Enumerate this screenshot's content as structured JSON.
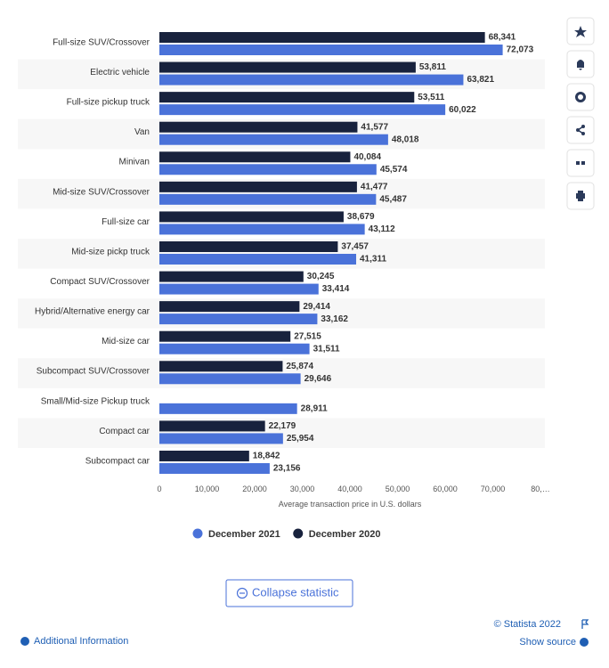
{
  "chart_data": {
    "type": "bar",
    "orientation": "horizontal",
    "categories": [
      "Full-size SUV/Crossover",
      "Electric vehicle",
      "Full-size pickup truck",
      "Van",
      "Minivan",
      "Mid-size SUV/Crossover",
      "Full-size car",
      "Mid-size pickp truck",
      "Compact SUV/Crossover",
      "Hybrid/Alternative energy car",
      "Mid-size car",
      "Subcompact SUV/Crossover",
      "Small/Mid-size Pickup truck",
      "Compact car",
      "Subcompact car"
    ],
    "series": [
      {
        "name": "December 2021",
        "color": "#4a72d9",
        "values": [
          72073,
          63821,
          60022,
          48018,
          45574,
          45487,
          43112,
          41311,
          33414,
          33162,
          31511,
          29646,
          28911,
          25954,
          23156
        ],
        "value_labels": [
          "72,073",
          "63,821",
          "60,022",
          "48,018",
          "45,574",
          "45,487",
          "43,112",
          "41,311",
          "33,414",
          "33,162",
          "31,511",
          "29,646",
          "28,911",
          "25,954",
          "23,156"
        ]
      },
      {
        "name": "December 2020",
        "color": "#18223d",
        "values": [
          68341,
          53811,
          53511,
          41577,
          40084,
          41477,
          38679,
          37457,
          30245,
          29414,
          27515,
          25874,
          null,
          22179,
          18842
        ],
        "value_labels": [
          "68,341",
          "53,811",
          "53,511",
          "41,577",
          "40,084",
          "41,477",
          "38,679",
          "37,457",
          "30,245",
          "29,414",
          "27,515",
          "25,874",
          null,
          "22,179",
          "18,842"
        ]
      }
    ],
    "x_label": "Average transaction price in U.S. dollars",
    "xlim": [
      0,
      80000
    ],
    "xticks": [
      0,
      {
        "value": 10000,
        "label": "10,000"
      },
      {
        "value": 20000,
        "label": "20,000"
      },
      {
        "value": 30000,
        "label": "30,000"
      },
      {
        "value": 40000,
        "label": "40,000"
      },
      {
        "value": 50000,
        "label": "50,000"
      },
      {
        "value": 60000,
        "label": "60,000"
      },
      {
        "value": 70000,
        "label": "70,000"
      },
      {
        "value": 80000,
        "label": "80,…"
      }
    ],
    "grid": false
  },
  "ui": {
    "collapse_button": "Collapse statistic",
    "copyright": "© Statista 2022",
    "additional_info": "Additional Information",
    "show_source": "Show source"
  }
}
